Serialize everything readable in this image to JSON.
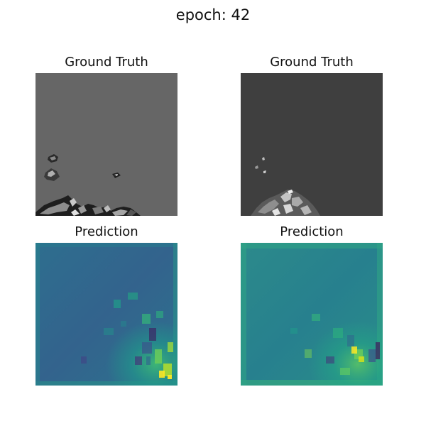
{
  "figure": {
    "suptitle": "epoch: 42"
  },
  "panels": [
    {
      "title": "Ground Truth",
      "colormap": "gray",
      "background": "#666666"
    },
    {
      "title": "Ground Truth",
      "colormap": "gray",
      "background": "#3f3f3f"
    },
    {
      "title": "Prediction",
      "colormap": "viridis",
      "background": "#33708d"
    },
    {
      "title": "Prediction",
      "colormap": "viridis",
      "background": "#2f8f8c"
    }
  ]
}
